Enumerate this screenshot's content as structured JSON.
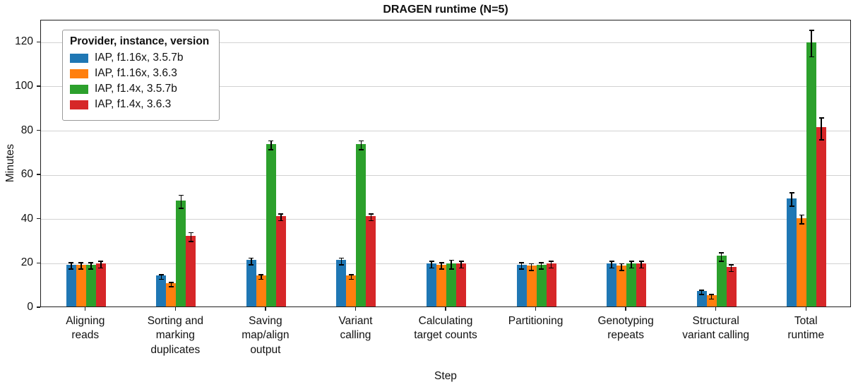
{
  "chart_data": {
    "type": "bar",
    "title": "DRAGEN runtime (N=5)",
    "xlabel": "Step",
    "ylabel": "Minutes",
    "ylim": [
      0,
      130
    ],
    "yticks": [
      0,
      20,
      40,
      60,
      80,
      100,
      120
    ],
    "grid": "horizontal",
    "legend": {
      "title": "Provider, instance, version",
      "position": "upper-left"
    },
    "categories": [
      "Aligning reads",
      "Sorting and marking duplicates",
      "Saving map/align output",
      "Variant calling",
      "Calculating target counts",
      "Partitioning",
      "Genotyping repeats",
      "Structural variant calling",
      "Total runtime"
    ],
    "category_display": [
      "Aligning\nreads",
      "Sorting and\nmarking\nduplicates",
      "Saving\nmap/align\noutput",
      "Variant\ncalling",
      "Calculating\ntarget counts",
      "Partitioning",
      "Genotyping\nrepeats",
      "Structural\nvariant calling",
      "Total\nruntime"
    ],
    "series": [
      {
        "name": "IAP, f1.16x, 3.5.7b",
        "color": "#1f77b4",
        "values": [
          19,
          14,
          21,
          21,
          19.5,
          19,
          19.5,
          7,
          49
        ],
        "errors": [
          1.5,
          1,
          1.5,
          1.5,
          1.5,
          1.5,
          1.5,
          1,
          3
        ]
      },
      {
        "name": "IAP, f1.16x, 3.6.3",
        "color": "#ff7f0e",
        "values": [
          19,
          10.5,
          14,
          14,
          19,
          18.5,
          18.5,
          5,
          40
        ],
        "errors": [
          1.5,
          1,
          1,
          1,
          1.5,
          1.5,
          1.5,
          1,
          2
        ]
      },
      {
        "name": "IAP, f1.4x, 3.5.7b",
        "color": "#2ca02c",
        "values": [
          19,
          48,
          73.5,
          73.5,
          19.5,
          19,
          19.5,
          23,
          119.5
        ],
        "errors": [
          1.5,
          3,
          2,
          2,
          2,
          1.5,
          1.5,
          2,
          6
        ]
      },
      {
        "name": "IAP, f1.4x, 3.6.3",
        "color": "#d62728",
        "values": [
          19.5,
          32,
          41,
          41,
          19.5,
          19.5,
          19.5,
          18,
          81
        ],
        "errors": [
          1.5,
          2,
          1.5,
          1.5,
          1.5,
          1.5,
          1.5,
          1.5,
          5
        ]
      }
    ]
  }
}
